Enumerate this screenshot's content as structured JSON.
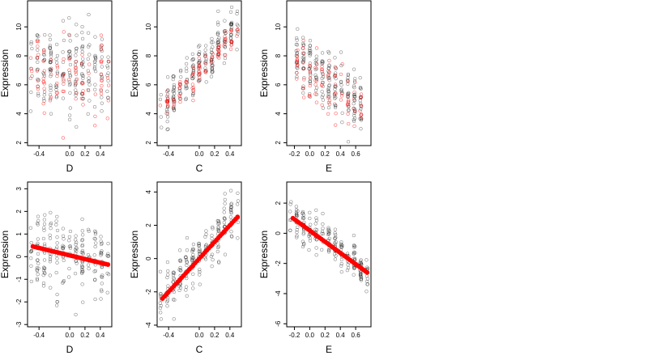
{
  "colors": {
    "points_black": "#000000",
    "points_red": "#ff0000"
  },
  "chart_data": [
    {
      "type": "scatter",
      "xlabel": "D",
      "ylabel": "Expression",
      "xlim": [
        -0.55,
        0.55
      ],
      "ylim": [
        1.8,
        11.8
      ],
      "xticks": [
        {
          "v": -0.4,
          "label": "-0.4"
        },
        {
          "v": 0.0,
          "label": "0.0"
        },
        {
          "v": 0.2,
          "label": "0.2"
        },
        {
          "v": 0.4,
          "label": "0.4"
        }
      ],
      "yticks": [
        {
          "v": 2,
          "label": "2"
        },
        {
          "v": 4,
          "label": "4"
        },
        {
          "v": 6,
          "label": "6"
        },
        {
          "v": 8,
          "label": "8"
        },
        {
          "v": 10,
          "label": "10"
        }
      ],
      "series": [
        {
          "color": "black",
          "trend_x": [
            -0.5,
            0.5
          ],
          "trend_y": [
            7.2,
            7.0
          ],
          "spread": 1.9
        },
        {
          "color": "red",
          "trend_x": [
            -0.5,
            0.5
          ],
          "trend_y": [
            6.8,
            6.5
          ],
          "spread": 1.6
        }
      ]
    },
    {
      "type": "scatter",
      "xlabel": "C",
      "ylabel": "Expression",
      "xlim": [
        -0.55,
        0.55
      ],
      "ylim": [
        1.8,
        11.8
      ],
      "xticks": [
        {
          "v": -0.4,
          "label": "-0.4"
        },
        {
          "v": 0.0,
          "label": "0.0"
        },
        {
          "v": 0.2,
          "label": "0.2"
        },
        {
          "v": 0.4,
          "label": "0.4"
        }
      ],
      "yticks": [
        {
          "v": 2,
          "label": "2"
        },
        {
          "v": 4,
          "label": "4"
        },
        {
          "v": 6,
          "label": "6"
        },
        {
          "v": 8,
          "label": "8"
        },
        {
          "v": 10,
          "label": "10"
        }
      ],
      "series": [
        {
          "color": "black",
          "trend_x": [
            -0.5,
            0.5
          ],
          "trend_y": [
            4.5,
            9.8
          ],
          "spread": 1.0
        },
        {
          "color": "red",
          "trend_x": [
            -0.5,
            0.5
          ],
          "trend_y": [
            4.3,
            9.6
          ],
          "spread": 0.5
        }
      ]
    },
    {
      "type": "scatter",
      "xlabel": "E",
      "ylabel": "Expression",
      "xlim": [
        -0.3,
        0.8
      ],
      "ylim": [
        1.8,
        11.8
      ],
      "xticks": [
        {
          "v": -0.2,
          "label": "-0.2"
        },
        {
          "v": 0.0,
          "label": "0.0"
        },
        {
          "v": 0.2,
          "label": "0.2"
        },
        {
          "v": 0.4,
          "label": "0.4"
        },
        {
          "v": 0.6,
          "label": "0.6"
        }
      ],
      "yticks": [
        {
          "v": 2,
          "label": "2"
        },
        {
          "v": 4,
          "label": "4"
        },
        {
          "v": 6,
          "label": "6"
        },
        {
          "v": 8,
          "label": "8"
        },
        {
          "v": 10,
          "label": "10"
        }
      ],
      "series": [
        {
          "color": "black",
          "trend_x": [
            -0.2,
            0.7
          ],
          "trend_y": [
            8.0,
            4.5
          ],
          "spread": 1.4
        },
        {
          "color": "red",
          "trend_x": [
            -0.2,
            0.7
          ],
          "trend_y": [
            7.5,
            4.2
          ],
          "spread": 1.3
        }
      ]
    },
    {
      "type": "scatter",
      "xlabel": "D",
      "ylabel": "Expression",
      "xlim": [
        -0.55,
        0.55
      ],
      "ylim": [
        -3.1,
        3.3
      ],
      "xticks": [
        {
          "v": -0.4,
          "label": "-0.4"
        },
        {
          "v": 0.0,
          "label": "0.0"
        },
        {
          "v": 0.2,
          "label": "0.2"
        },
        {
          "v": 0.4,
          "label": "0.4"
        }
      ],
      "yticks": [
        {
          "v": -3,
          "label": "-3"
        },
        {
          "v": -2,
          "label": "-2"
        },
        {
          "v": -1,
          "label": "-1"
        },
        {
          "v": 0,
          "label": "0"
        },
        {
          "v": 1,
          "label": "1"
        },
        {
          "v": 2,
          "label": "2"
        },
        {
          "v": 3,
          "label": "3"
        }
      ],
      "series": [
        {
          "color": "black",
          "trend_x": [
            -0.5,
            0.5
          ],
          "trend_y": [
            0.3,
            -0.3
          ],
          "spread": 1.0
        },
        {
          "color": "red",
          "trend_x": [
            -0.48,
            0.5
          ],
          "trend_y": [
            0.45,
            -0.35
          ],
          "spread": 0.0
        }
      ]
    },
    {
      "type": "scatter",
      "xlabel": "C",
      "ylabel": "Expression",
      "xlim": [
        -0.55,
        0.55
      ],
      "ylim": [
        -4.1,
        4.6
      ],
      "xticks": [
        {
          "v": -0.4,
          "label": "-0.4"
        },
        {
          "v": 0.0,
          "label": "0.0"
        },
        {
          "v": 0.2,
          "label": "0.2"
        },
        {
          "v": 0.4,
          "label": "0.4"
        }
      ],
      "yticks": [
        {
          "v": -4,
          "label": "-4"
        },
        {
          "v": -2,
          "label": "-2"
        },
        {
          "v": 0,
          "label": "0"
        },
        {
          "v": 2,
          "label": "2"
        },
        {
          "v": 4,
          "label": "4"
        }
      ],
      "series": [
        {
          "color": "black",
          "trend_x": [
            -0.5,
            0.5
          ],
          "trend_y": [
            -2.4,
            2.8
          ],
          "spread": 0.9
        },
        {
          "color": "red",
          "trend_x": [
            -0.48,
            0.5
          ],
          "trend_y": [
            -2.4,
            2.5
          ],
          "spread": 0.0
        }
      ]
    },
    {
      "type": "scatter",
      "xlabel": "E",
      "ylabel": "Expression",
      "xlim": [
        -0.3,
        0.8
      ],
      "ylim": [
        -6.2,
        3.4
      ],
      "xticks": [
        {
          "v": -0.2,
          "label": "-0.2"
        },
        {
          "v": 0.0,
          "label": "0.0"
        },
        {
          "v": 0.2,
          "label": "0.2"
        },
        {
          "v": 0.4,
          "label": "0.4"
        },
        {
          "v": 0.6,
          "label": "0.6"
        }
      ],
      "yticks": [
        {
          "v": -6,
          "label": "-6"
        },
        {
          "v": -4,
          "label": "-4"
        },
        {
          "v": -2,
          "label": "-2"
        },
        {
          "v": 0,
          "label": "0"
        },
        {
          "v": 2,
          "label": "2"
        }
      ],
      "series": [
        {
          "color": "black",
          "trend_x": [
            -0.22,
            0.75
          ],
          "trend_y": [
            1.0,
            -2.4
          ],
          "spread": 0.8
        },
        {
          "color": "red",
          "trend_x": [
            -0.22,
            0.75
          ],
          "trend_y": [
            1.0,
            -2.6
          ],
          "spread": 0.0
        }
      ]
    }
  ]
}
